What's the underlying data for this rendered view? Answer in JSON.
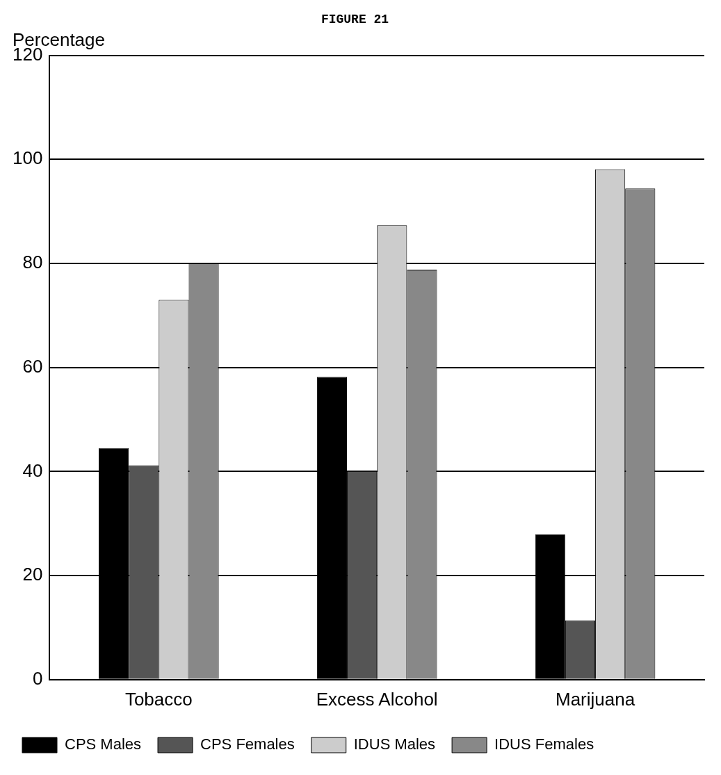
{
  "chart_data": {
    "type": "bar",
    "title": "FIGURE 21",
    "ylabel": "Percentage",
    "categories": [
      "Tobacco",
      "Excess Alcohol",
      "Marijuana"
    ],
    "series": [
      {
        "name": "CPS Males",
        "color": "#000000",
        "values": [
          44.5,
          58.2,
          27.9
        ]
      },
      {
        "name": "CPS Females",
        "color": "#555555",
        "values": [
          41.2,
          40.1,
          11.4
        ]
      },
      {
        "name": "IDUS Males",
        "color": "#cccccc",
        "values": [
          73,
          87.3,
          98.1
        ]
      },
      {
        "name": "IDUS Females",
        "color": "#888888",
        "values": [
          80,
          78.8,
          94.4
        ]
      }
    ],
    "ylim": [
      0,
      120
    ],
    "yticks": [
      0,
      20,
      40,
      60,
      80,
      100,
      120
    ],
    "grid": "y",
    "legend": "bottom"
  }
}
